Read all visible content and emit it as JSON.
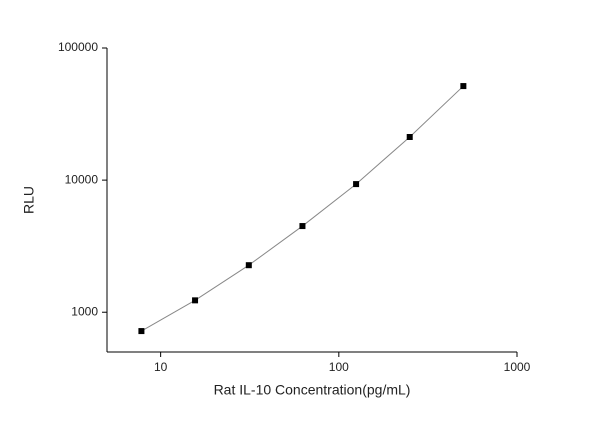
{
  "chart_data": {
    "type": "scatter",
    "x_label": "Rat IL-10 Concentration(pg/mL)",
    "y_label": "RLU",
    "x": [
      7.8,
      15.6,
      31.25,
      62.5,
      125,
      250,
      500
    ],
    "series": [
      {
        "color": "#000000",
        "values": [
          720,
          1230,
          2270,
          4490,
          9330,
          21200,
          51500
        ]
      }
    ],
    "xlim": [
      5,
      1000
    ],
    "ylim": [
      500,
      100000
    ],
    "xticks": [
      10,
      100,
      1000
    ],
    "yticks": [
      1000,
      10000,
      100000
    ],
    "xlog": true,
    "ylog": true,
    "line_color": "#888888"
  }
}
